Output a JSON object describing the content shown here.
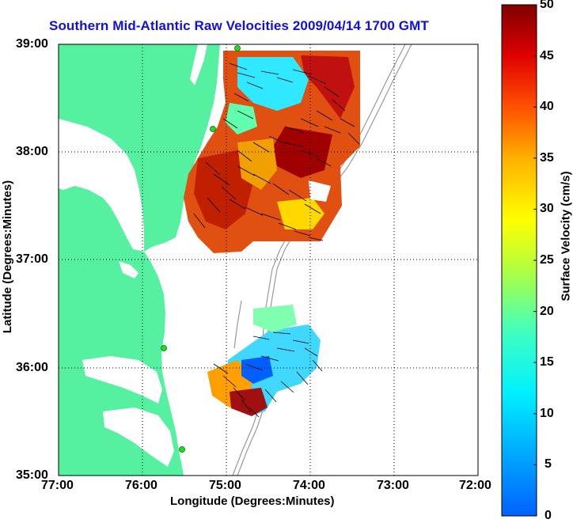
{
  "title": "Southern Mid-Atlantic Raw Velocities 2009/04/14 1700 GMT",
  "map": {
    "xlabel": "Longitude (Degrees:Minutes)",
    "ylabel": "Latitude (Degrees:Minutes)",
    "x_ticks": [
      "77:00",
      "76:00",
      "75:00",
      "74:00",
      "73:00",
      "72:00"
    ],
    "y_ticks": [
      "39:00",
      "38:00",
      "37:00",
      "36:00",
      "35:00"
    ],
    "lon_range": [
      -77,
      -72
    ],
    "lat_range": [
      35,
      39
    ],
    "grid": true
  },
  "colorbar": {
    "label": "Surface Velocity (cm/s)",
    "ticks": [
      "50",
      "45",
      "40",
      "35",
      "30",
      "25",
      "20",
      "15",
      "10",
      "5",
      "0"
    ],
    "range": [
      0,
      50
    ]
  },
  "colors": {
    "land": "#55f0a0",
    "title": "#1010e0",
    "station": "#22dd22"
  }
}
